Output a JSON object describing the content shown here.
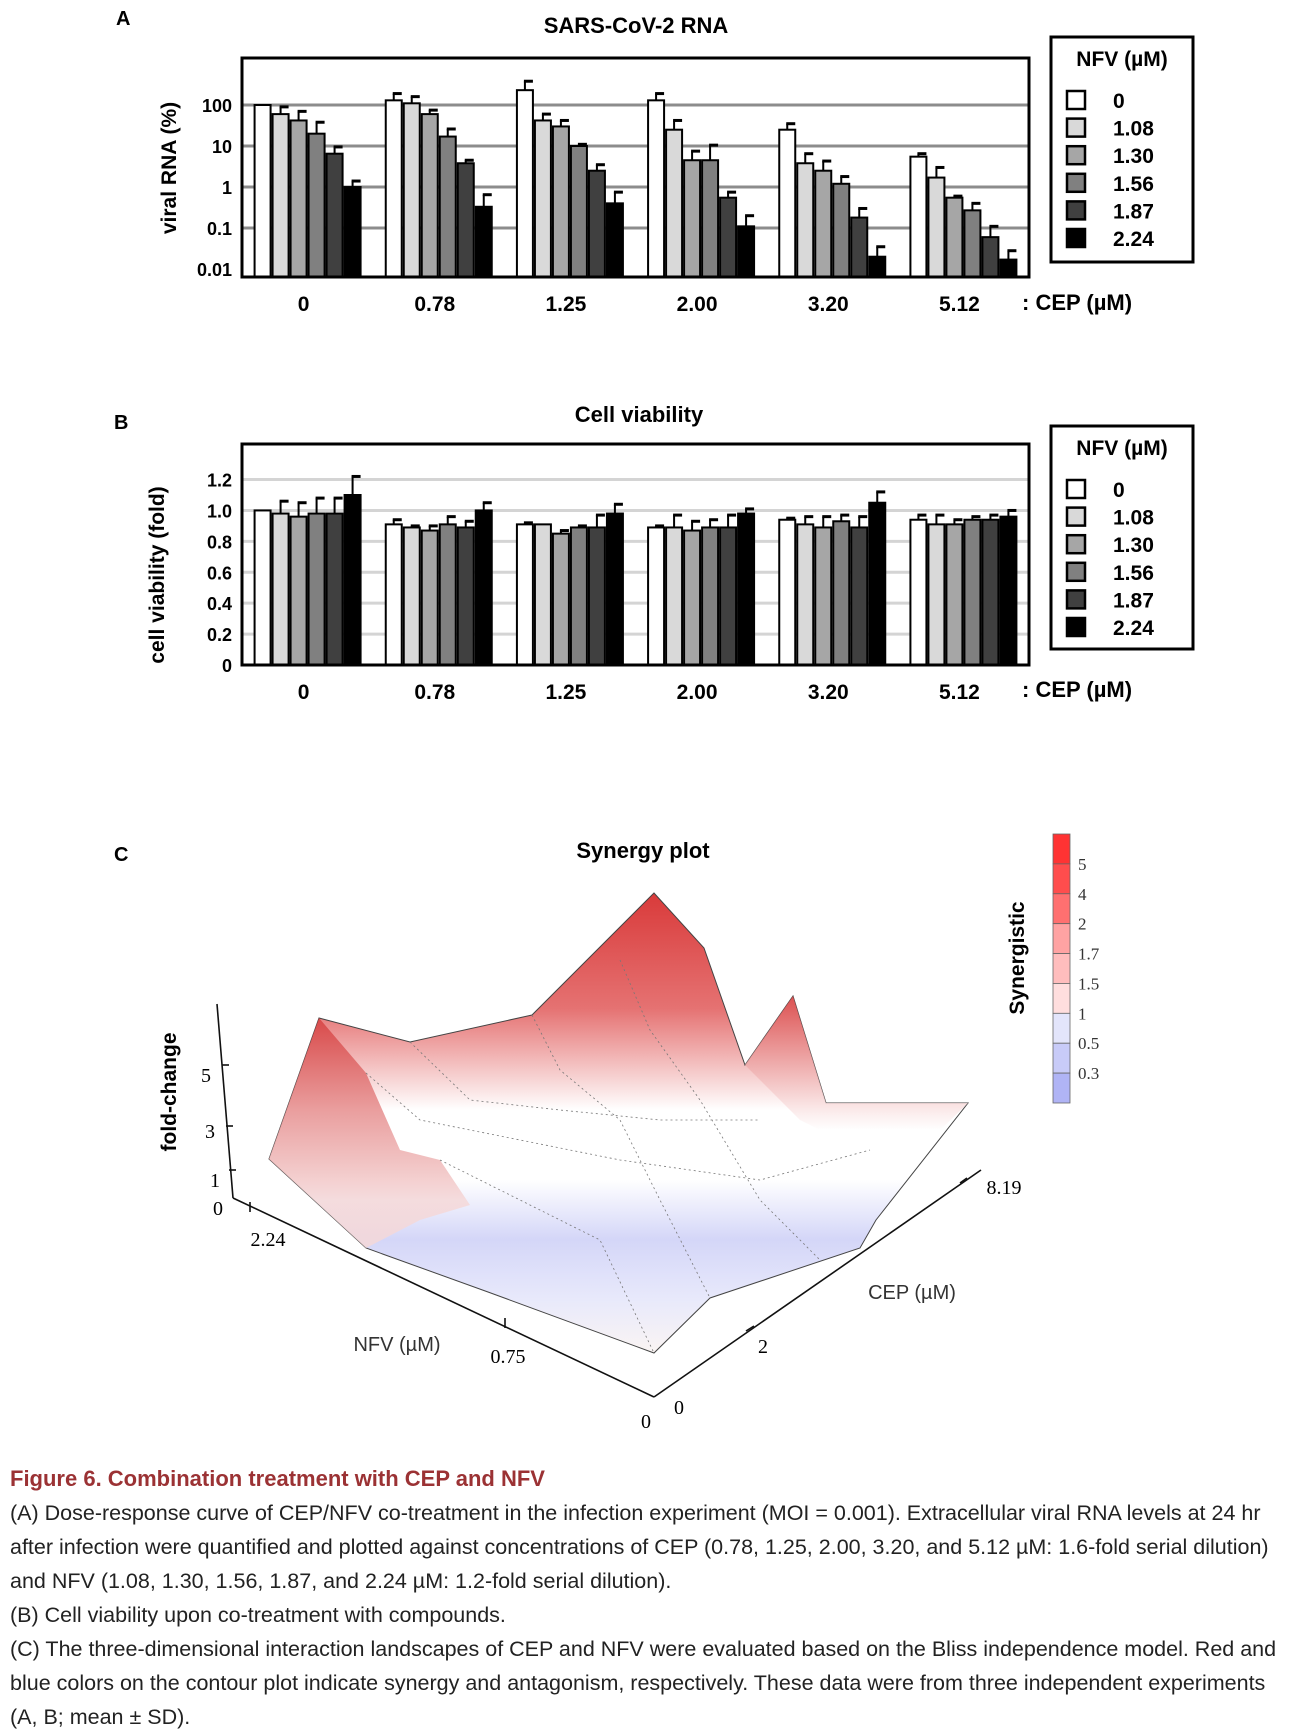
{
  "panels": {
    "a": "A",
    "b": "B",
    "c": "C"
  },
  "chart_data": [
    {
      "type": "bar",
      "title": "SARS-CoV-2 RNA",
      "ylabel": "viral RNA (%)",
      "xlabel": ": CEP (µM)",
      "yscale": "log",
      "ylim": [
        0.0064,
        1400
      ],
      "yticks": [
        "100",
        "10",
        "1",
        "0.1",
        "0.01"
      ],
      "ytick_values": [
        100,
        10,
        1,
        0.1,
        0.01
      ],
      "grid": true,
      "legend": {
        "title": "NFV (µM)",
        "placement": "right",
        "entries": [
          "0",
          "1.08",
          "1.30",
          "1.56",
          "1.87",
          "2.24"
        ]
      },
      "colors": [
        "#ffffff",
        "#d9d9d9",
        "#a6a6a6",
        "#808080",
        "#404040",
        "#000000"
      ],
      "categories": [
        "0",
        "0.78",
        "1.25",
        "2.00",
        "3.20",
        "5.12"
      ],
      "series": [
        {
          "name": "0",
          "values": [
            100,
            130,
            230,
            130,
            25,
            5.5
          ],
          "err": [
            0,
            60,
            150,
            60,
            10,
            1
          ]
        },
        {
          "name": "1.08",
          "values": [
            60,
            110,
            42,
            25,
            3.8,
            1.7
          ],
          "err": [
            30,
            50,
            18,
            17,
            2.7,
            1.3
          ]
        },
        {
          "name": "1.30",
          "values": [
            42,
            60,
            30,
            4.5,
            2.5,
            0.55
          ],
          "err": [
            28,
            15,
            12,
            3,
            1.8,
            0.05
          ]
        },
        {
          "name": "1.56",
          "values": [
            20,
            17,
            10,
            4.5,
            1.2,
            0.27
          ],
          "err": [
            18,
            9,
            1,
            6,
            0.6,
            0.13
          ]
        },
        {
          "name": "1.87",
          "values": [
            6.5,
            3.8,
            2.5,
            0.55,
            0.18,
            0.06
          ],
          "err": [
            3,
            0.7,
            1,
            0.2,
            0.12,
            0.05
          ]
        },
        {
          "name": "2.24",
          "values": [
            1.0,
            0.33,
            0.4,
            0.11,
            0.02,
            0.017
          ],
          "err": [
            0.4,
            0.32,
            0.35,
            0.09,
            0.015,
            0.011
          ]
        }
      ]
    },
    {
      "type": "bar",
      "title": "Cell viability",
      "ylabel": "cell viability (fold)",
      "xlabel": ": CEP (µM)",
      "ylim": [
        0,
        1.43
      ],
      "yticks": [
        "1.2",
        "1.0",
        "0.8",
        "0.6",
        "0.4",
        "0.2",
        "0"
      ],
      "ytick_values": [
        1.2,
        1.0,
        0.8,
        0.6,
        0.4,
        0.2,
        0
      ],
      "grid": true,
      "legend": {
        "title": "NFV (µM)",
        "placement": "right",
        "entries": [
          "0",
          "1.08",
          "1.30",
          "1.56",
          "1.87",
          "2.24"
        ]
      },
      "colors": [
        "#ffffff",
        "#d9d9d9",
        "#a6a6a6",
        "#808080",
        "#404040",
        "#000000"
      ],
      "categories": [
        "0",
        "0.78",
        "1.25",
        "2.00",
        "3.20",
        "5.12"
      ],
      "series": [
        {
          "name": "0",
          "values": [
            1.0,
            0.91,
            0.91,
            0.89,
            0.94,
            0.94
          ],
          "err": [
            0.0,
            0.03,
            0.01,
            0.01,
            0.01,
            0.03
          ]
        },
        {
          "name": "1.08",
          "values": [
            0.98,
            0.89,
            0.91,
            0.89,
            0.91,
            0.91
          ],
          "err": [
            0.08,
            0.01,
            0.0,
            0.08,
            0.05,
            0.06
          ]
        },
        {
          "name": "1.30",
          "values": [
            0.96,
            0.87,
            0.85,
            0.87,
            0.89,
            0.91
          ],
          "err": [
            0.09,
            0.03,
            0.02,
            0.06,
            0.07,
            0.03
          ]
        },
        {
          "name": "1.56",
          "values": [
            0.98,
            0.91,
            0.89,
            0.89,
            0.93,
            0.94
          ],
          "err": [
            0.1,
            0.05,
            0.01,
            0.05,
            0.04,
            0.02
          ]
        },
        {
          "name": "1.87",
          "values": [
            0.98,
            0.89,
            0.89,
            0.89,
            0.89,
            0.94
          ],
          "err": [
            0.1,
            0.04,
            0.08,
            0.08,
            0.07,
            0.03
          ]
        },
        {
          "name": "2.24",
          "values": [
            1.1,
            1.0,
            0.98,
            0.98,
            1.05,
            0.96
          ],
          "err": [
            0.12,
            0.05,
            0.06,
            0.03,
            0.07,
            0.04
          ]
        }
      ]
    },
    {
      "type": "surface",
      "title": "Synergy plot",
      "zlabel": "fold-change",
      "xlabel": "NFV (µM)",
      "ylabel": "CEP (µM)",
      "zticks": [
        "5",
        "3",
        "1",
        "0"
      ],
      "xticks": [
        "2.24",
        "0.75",
        "0"
      ],
      "yticks": [
        "8.19",
        "2",
        "0"
      ],
      "colorbar": {
        "label": "Synergistic",
        "ticks": [
          "5",
          "4",
          "2",
          "1.7",
          "1.5",
          "1",
          "0.5",
          "0.3"
        ],
        "colors": [
          "#ff3333",
          "#ff4d4d",
          "#ff7070",
          "#ffa3a3",
          "#ffbdbd",
          "#ffdede",
          "#e3e5fb",
          "#c8cbf8",
          "#b0b4f5"
        ]
      },
      "colors": {
        "synergy": "#d93a3a",
        "neutral": "#ffffff",
        "antagonism": "#c9cdf6"
      }
    }
  ],
  "caption": {
    "title": "Figure 6.  Combination treatment with CEP and NFV",
    "a": "(A) Dose-response curve of CEP/NFV co-treatment in the infection experiment (MOI = 0.001). Extracellular viral RNA levels at 24 hr after infection were quantified and plotted against concentrations of CEP (0.78, 1.25, 2.00, 3.20, and 5.12 µM: 1.6-fold serial dilution) and NFV (1.08, 1.30, 1.56, 1.87, and 2.24 µM: 1.2-fold serial dilution).",
    "b": "(B) Cell viability upon co-treatment with compounds.",
    "c": "(C) The three-dimensional interaction landscapes of CEP and NFV were evaluated based on the Bliss independence model. Red and blue colors on the contour plot indicate synergy and antagonism, respectively. These data were from three independent experiments (A, B; mean ± SD)."
  }
}
